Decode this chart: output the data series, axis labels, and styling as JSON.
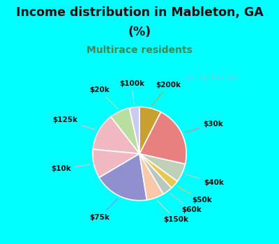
{
  "title_line1": "Income distribution in Mableton, GA",
  "title_line2": "(%)",
  "subtitle": "Multirace residents",
  "title_color": "#111111",
  "subtitle_color": "#3a8a5a",
  "outer_bg_color": "#00ffff",
  "chart_bg_color": "#dff0e8",
  "labels": [
    "$100k",
    "$20k",
    "$125k",
    "$10k",
    "$75k",
    "$150k",
    "$60k",
    "$50k",
    "$40k",
    "$30k",
    "$200k"
  ],
  "sizes": [
    3.5,
    7.0,
    13.0,
    10.0,
    19.0,
    6.0,
    3.5,
    3.0,
    6.5,
    21.0,
    7.5
  ],
  "colors": [
    "#c8ccf0",
    "#b8dea0",
    "#f0b8c0",
    "#f0b8c0",
    "#9090d0",
    "#f8c8a8",
    "#b8c8c0",
    "#e8c850",
    "#c0d0b8",
    "#e88080",
    "#c8a030"
  ],
  "startangle": 90,
  "label_fontsize": 7.5,
  "label_color": "#111111",
  "watermark": "City-Data.com"
}
